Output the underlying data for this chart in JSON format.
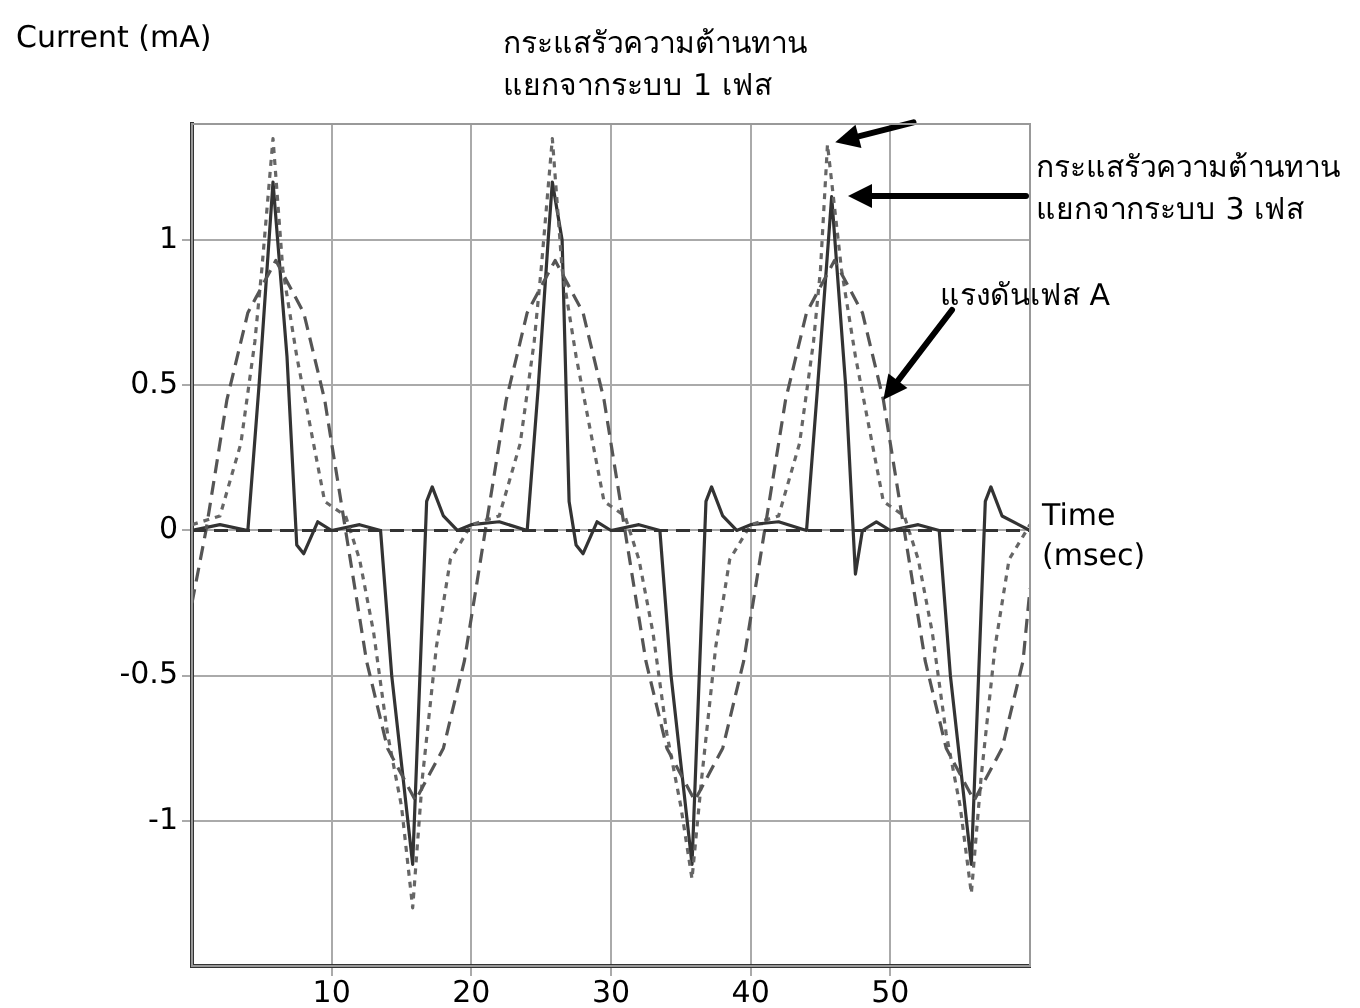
{
  "chart_data": {
    "type": "line",
    "xlabel": "Time\n(msec)",
    "ylabel": "Current (mA)",
    "xlim": [
      0,
      60
    ],
    "xticks": [
      10,
      20,
      30,
      40,
      50
    ],
    "ylim": [
      -1.5,
      1.4
    ],
    "yticks": [
      -1,
      -0.5,
      0,
      0.5,
      1
    ],
    "grid": true,
    "legend": false,
    "marker": "none",
    "ref_lines": [
      {
        "axis": "y",
        "value": 0,
        "color": "#333333",
        "line_style": "dashed"
      }
    ],
    "series": [
      {
        "color": "#555555",
        "line_style": "dashed",
        "x": [
          0,
          1,
          2.5,
          4,
          6,
          8,
          9.5,
          11,
          12.5,
          14,
          16,
          18,
          19.5,
          21,
          22.5,
          24,
          26,
          28,
          29.5,
          31,
          32.5,
          34,
          36,
          38,
          39.5,
          41,
          42.5,
          44,
          46,
          48,
          49.5,
          51,
          52.5,
          54,
          56,
          58,
          59.5,
          60
        ],
        "values": [
          -0.25,
          0,
          0.45,
          0.75,
          0.93,
          0.75,
          0.45,
          0,
          -0.45,
          -0.75,
          -0.93,
          -0.75,
          -0.45,
          0,
          0.45,
          0.75,
          0.93,
          0.75,
          0.45,
          0,
          -0.45,
          -0.75,
          -0.93,
          -0.75,
          -0.45,
          0,
          0.45,
          0.75,
          0.93,
          0.75,
          0.45,
          0,
          -0.45,
          -0.75,
          -0.93,
          -0.75,
          -0.45,
          -0.2
        ]
      },
      {
        "color": "#666666",
        "line_style": "dotted",
        "x": [
          0,
          2,
          3.5,
          4.5,
          5,
          5.8,
          6.5,
          7.5,
          8.5,
          9.5,
          11,
          12,
          13,
          14,
          15,
          15.8,
          16.5,
          17.5,
          18.5,
          20,
          22,
          23.5,
          24.5,
          25,
          25.8,
          26.5,
          27.5,
          28.5,
          29.5,
          31,
          32,
          33,
          34,
          35,
          35.8,
          36.5,
          37.5,
          38.5,
          40,
          42,
          43.5,
          44.5,
          45,
          45.5,
          46.5,
          47.5,
          48.5,
          49.5,
          51,
          52,
          53,
          54,
          55,
          55.8,
          56.5,
          57.5,
          58.5,
          60
        ],
        "values": [
          0.02,
          0.05,
          0.3,
          0.65,
          0.9,
          1.35,
          0.9,
          0.6,
          0.35,
          0.1,
          0.05,
          -0.1,
          -0.35,
          -0.7,
          -0.95,
          -1.3,
          -0.85,
          -0.4,
          -0.1,
          0.02,
          0.05,
          0.3,
          0.65,
          0.9,
          1.35,
          0.9,
          0.6,
          0.35,
          0.1,
          0.05,
          -0.1,
          -0.35,
          -0.7,
          -0.95,
          -1.2,
          -0.85,
          -0.4,
          -0.1,
          0.02,
          0.05,
          0.3,
          0.65,
          0.9,
          1.33,
          0.9,
          0.6,
          0.35,
          0.1,
          0.05,
          -0.1,
          -0.35,
          -0.7,
          -0.95,
          -1.25,
          -0.85,
          -0.4,
          -0.1,
          0.02
        ]
      },
      {
        "color": "#333333",
        "line_style": "solid",
        "x": [
          0,
          2,
          4,
          4.8,
          5.8,
          6.8,
          7.5,
          8,
          9,
          10,
          12,
          13.5,
          14.3,
          15.8,
          16.8,
          17.2,
          18,
          19,
          20,
          22,
          24,
          24.8,
          25.5,
          25.8,
          26.5,
          27,
          27.5,
          28,
          29,
          30,
          32,
          33.5,
          34.3,
          35.8,
          36.8,
          37.2,
          38,
          39,
          40,
          42,
          44,
          44.8,
          45.8,
          46.8,
          47.5,
          48,
          49,
          50,
          52,
          53.5,
          54.3,
          55.8,
          56.8,
          57.2,
          58,
          60
        ],
        "values": [
          0,
          0.02,
          0,
          0.5,
          1.2,
          0.6,
          -0.05,
          -0.08,
          0.03,
          0,
          0.02,
          0,
          -0.5,
          -1.15,
          0.1,
          0.15,
          0.05,
          0,
          0.02,
          0.03,
          0,
          0.5,
          1,
          1.2,
          1,
          0.1,
          -0.05,
          -0.08,
          0.03,
          0,
          0.02,
          0,
          -0.5,
          -1.15,
          0.1,
          0.15,
          0.05,
          0,
          0.02,
          0.03,
          0,
          0.5,
          1.15,
          0.5,
          -0.15,
          0,
          0.03,
          0,
          0.02,
          0,
          -0.5,
          -1.15,
          0.1,
          0.15,
          0.05,
          0
        ]
      }
    ],
    "annotations": [
      {
        "text": "กระแสรัวความต้านทาน\nแยกจากระบบ 1 เฟส",
        "x": 45.5,
        "y": 1.33
      },
      "กระแสรัวความต้านทาน\nแยกจากระบบ 3 เฟส",
      {
        "text": "แรงดันเฟส A",
        "x": 49.5,
        "y": 0.45
      }
    ]
  }
}
